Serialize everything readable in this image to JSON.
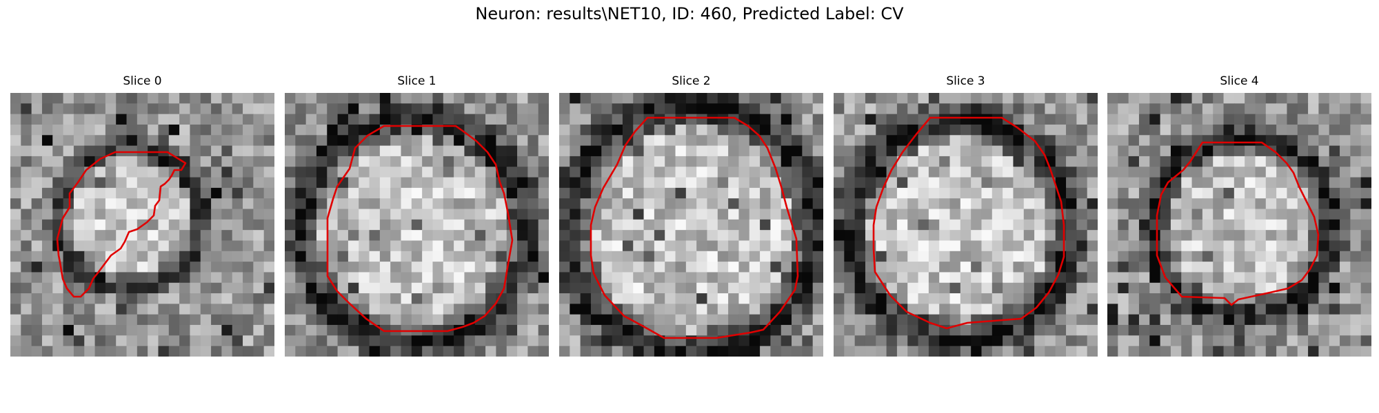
{
  "figure": {
    "suptitle": "Neuron: results\\NET10, ID: 460, Predicted Label: CV",
    "contour_color": "#e00000"
  },
  "panels": [
    {
      "title": "Slice 0",
      "image": "grayscale-em-patch-with-partial-red-contour"
    },
    {
      "title": "Slice 1",
      "image": "grayscale-em-patch-with-red-contour"
    },
    {
      "title": "Slice 2",
      "image": "grayscale-em-patch-with-red-contour"
    },
    {
      "title": "Slice 3",
      "image": "grayscale-em-patch-with-red-contour"
    },
    {
      "title": "Slice 4",
      "image": "grayscale-em-patch-with-red-contour"
    }
  ]
}
